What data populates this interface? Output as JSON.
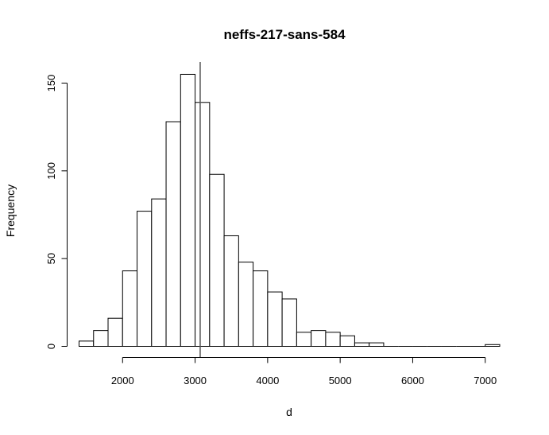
{
  "chart_data": {
    "type": "bar",
    "title": "neffs-217-sans-584",
    "xlabel": "d",
    "ylabel": "Frequency",
    "bin_width": 200,
    "bins": [
      {
        "start": 1400,
        "end": 1600,
        "count": 3
      },
      {
        "start": 1600,
        "end": 1800,
        "count": 9
      },
      {
        "start": 1800,
        "end": 2000,
        "count": 16
      },
      {
        "start": 2000,
        "end": 2200,
        "count": 43
      },
      {
        "start": 2200,
        "end": 2400,
        "count": 77
      },
      {
        "start": 2400,
        "end": 2600,
        "count": 84
      },
      {
        "start": 2600,
        "end": 2800,
        "count": 128
      },
      {
        "start": 2800,
        "end": 3000,
        "count": 155
      },
      {
        "start": 3000,
        "end": 3200,
        "count": 139
      },
      {
        "start": 3200,
        "end": 3400,
        "count": 98
      },
      {
        "start": 3400,
        "end": 3600,
        "count": 63
      },
      {
        "start": 3600,
        "end": 3800,
        "count": 48
      },
      {
        "start": 3800,
        "end": 4000,
        "count": 43
      },
      {
        "start": 4000,
        "end": 4200,
        "count": 31
      },
      {
        "start": 4200,
        "end": 4400,
        "count": 27
      },
      {
        "start": 4400,
        "end": 4600,
        "count": 8
      },
      {
        "start": 4600,
        "end": 4800,
        "count": 9
      },
      {
        "start": 4800,
        "end": 5000,
        "count": 8
      },
      {
        "start": 5000,
        "end": 5200,
        "count": 6
      },
      {
        "start": 5200,
        "end": 5400,
        "count": 2
      },
      {
        "start": 5400,
        "end": 5600,
        "count": 2
      },
      {
        "start": 5600,
        "end": 5800,
        "count": 0
      },
      {
        "start": 5800,
        "end": 6000,
        "count": 0
      },
      {
        "start": 6000,
        "end": 6200,
        "count": 0
      },
      {
        "start": 6200,
        "end": 6400,
        "count": 0
      },
      {
        "start": 6400,
        "end": 6600,
        "count": 0
      },
      {
        "start": 6600,
        "end": 6800,
        "count": 0
      },
      {
        "start": 6800,
        "end": 7000,
        "count": 0
      },
      {
        "start": 7000,
        "end": 7200,
        "count": 1
      }
    ],
    "reference_line_x": 3070,
    "x_ticks": [
      2000,
      3000,
      4000,
      5000,
      6000,
      7000
    ],
    "y_ticks": [
      0,
      50,
      100,
      150
    ],
    "xlim": [
      1400,
      7200
    ],
    "ylim": [
      0,
      155
    ],
    "grid": false,
    "legend": "none"
  }
}
